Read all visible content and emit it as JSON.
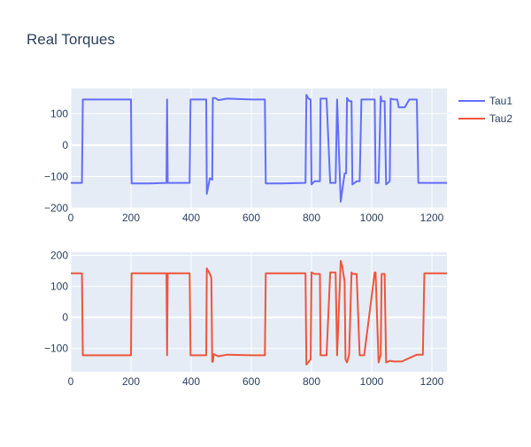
{
  "chart_data": {
    "type": "line",
    "title": "Real Torques",
    "legend": {
      "placement": "top-right",
      "entries": [
        {
          "name": "Tau1",
          "color": "#636efa"
        },
        {
          "name": "Tau2",
          "color": "#ef553b"
        }
      ]
    },
    "subplots": [
      {
        "xlim": [
          0,
          1250
        ],
        "ylim": [
          -200,
          180
        ],
        "x_ticks": [
          0,
          200,
          400,
          600,
          800,
          1000,
          1200
        ],
        "y_ticks": [
          -200,
          -100,
          0,
          100
        ],
        "y_tick_labels": [
          "−200",
          "−100",
          "0",
          "100"
        ],
        "series": [
          {
            "name": "Tau1",
            "color": "#636efa",
            "x": [
              0,
              37,
              40,
              100,
              200,
              202,
              210,
              260,
              318,
              320,
              322,
              395,
              398,
              450,
              452,
              455,
              462,
              470,
              472,
              480,
              490,
              520,
              600,
              645,
              648,
              700,
              780,
              783,
              790,
              797,
              800,
              810,
              828,
              830,
              850,
              862,
              866,
              880,
              885,
              897,
              905,
              910,
              915,
              918,
              925,
              933,
              936,
              950,
              960,
              966,
              980,
              1010,
              1013,
              1023,
              1030,
              1033,
              1043,
              1048,
              1060,
              1063,
              1073,
              1085,
              1090,
              1105,
              1110,
              1125,
              1130,
              1150,
              1155,
              1200,
              1250
            ],
            "y": [
              -120,
              -120,
              145,
              145,
              145,
              -122,
              -122,
              -122,
              -120,
              145,
              -120,
              -120,
              145,
              145,
              -155,
              -140,
              -105,
              -110,
              150,
              150,
              143,
              148,
              145,
              145,
              -122,
              -122,
              -120,
              160,
              148,
              145,
              -125,
              -115,
              -115,
              148,
              148,
              -120,
              -120,
              -120,
              145,
              -180,
              -125,
              -90,
              -90,
              150,
              140,
              140,
              -125,
              -115,
              -115,
              145,
              145,
              145,
              -120,
              -120,
              155,
              140,
              140,
              -125,
              -115,
              148,
              145,
              145,
              120,
              120,
              120,
              145,
              145,
              145,
              -120,
              -120,
              -120
            ]
          }
        ]
      },
      {
        "xlim": [
          0,
          1250
        ],
        "ylim": [
          -175,
          210
        ],
        "x_ticks": [
          0,
          200,
          400,
          600,
          800,
          1000,
          1200
        ],
        "y_ticks": [
          -100,
          0,
          100,
          200
        ],
        "y_tick_labels": [
          "−100",
          "0",
          "100",
          "200"
        ],
        "series": [
          {
            "name": "Tau2",
            "color": "#ef553b",
            "x": [
              0,
              37,
              40,
              100,
              200,
              202,
              260,
              318,
              320,
              322,
              395,
              398,
              450,
              452,
              462,
              467,
              470,
              472,
              475,
              490,
              520,
              600,
              645,
              648,
              700,
              780,
              783,
              797,
              800,
              810,
              828,
              830,
              850,
              862,
              866,
              880,
              885,
              897,
              902,
              910,
              913,
              918,
              925,
              933,
              936,
              950,
              960,
              966,
              975,
              1010,
              1013,
              1023,
              1030,
              1033,
              1043,
              1048,
              1060,
              1063,
              1073,
              1085,
              1100,
              1150,
              1153,
              1170,
              1175,
              1200,
              1250
            ],
            "y": [
              142,
              142,
              -122,
              -122,
              -122,
              142,
              142,
              142,
              -122,
              142,
              142,
              -122,
              -122,
              158,
              140,
              128,
              -143,
              -143,
              -118,
              -125,
              -120,
              -122,
              -122,
              142,
              142,
              142,
              -152,
              -135,
              145,
              140,
              140,
              -122,
              -122,
              145,
              145,
              145,
              -122,
              182,
              165,
              115,
              -135,
              -145,
              -120,
              145,
              140,
              140,
              -122,
              -122,
              -122,
              145,
              145,
              -145,
              -120,
              140,
              140,
              -145,
              -140,
              -140,
              -142,
              -142,
              -142,
              -120,
              -120,
              -120,
              142,
              142,
              142
            ]
          }
        ]
      }
    ]
  }
}
